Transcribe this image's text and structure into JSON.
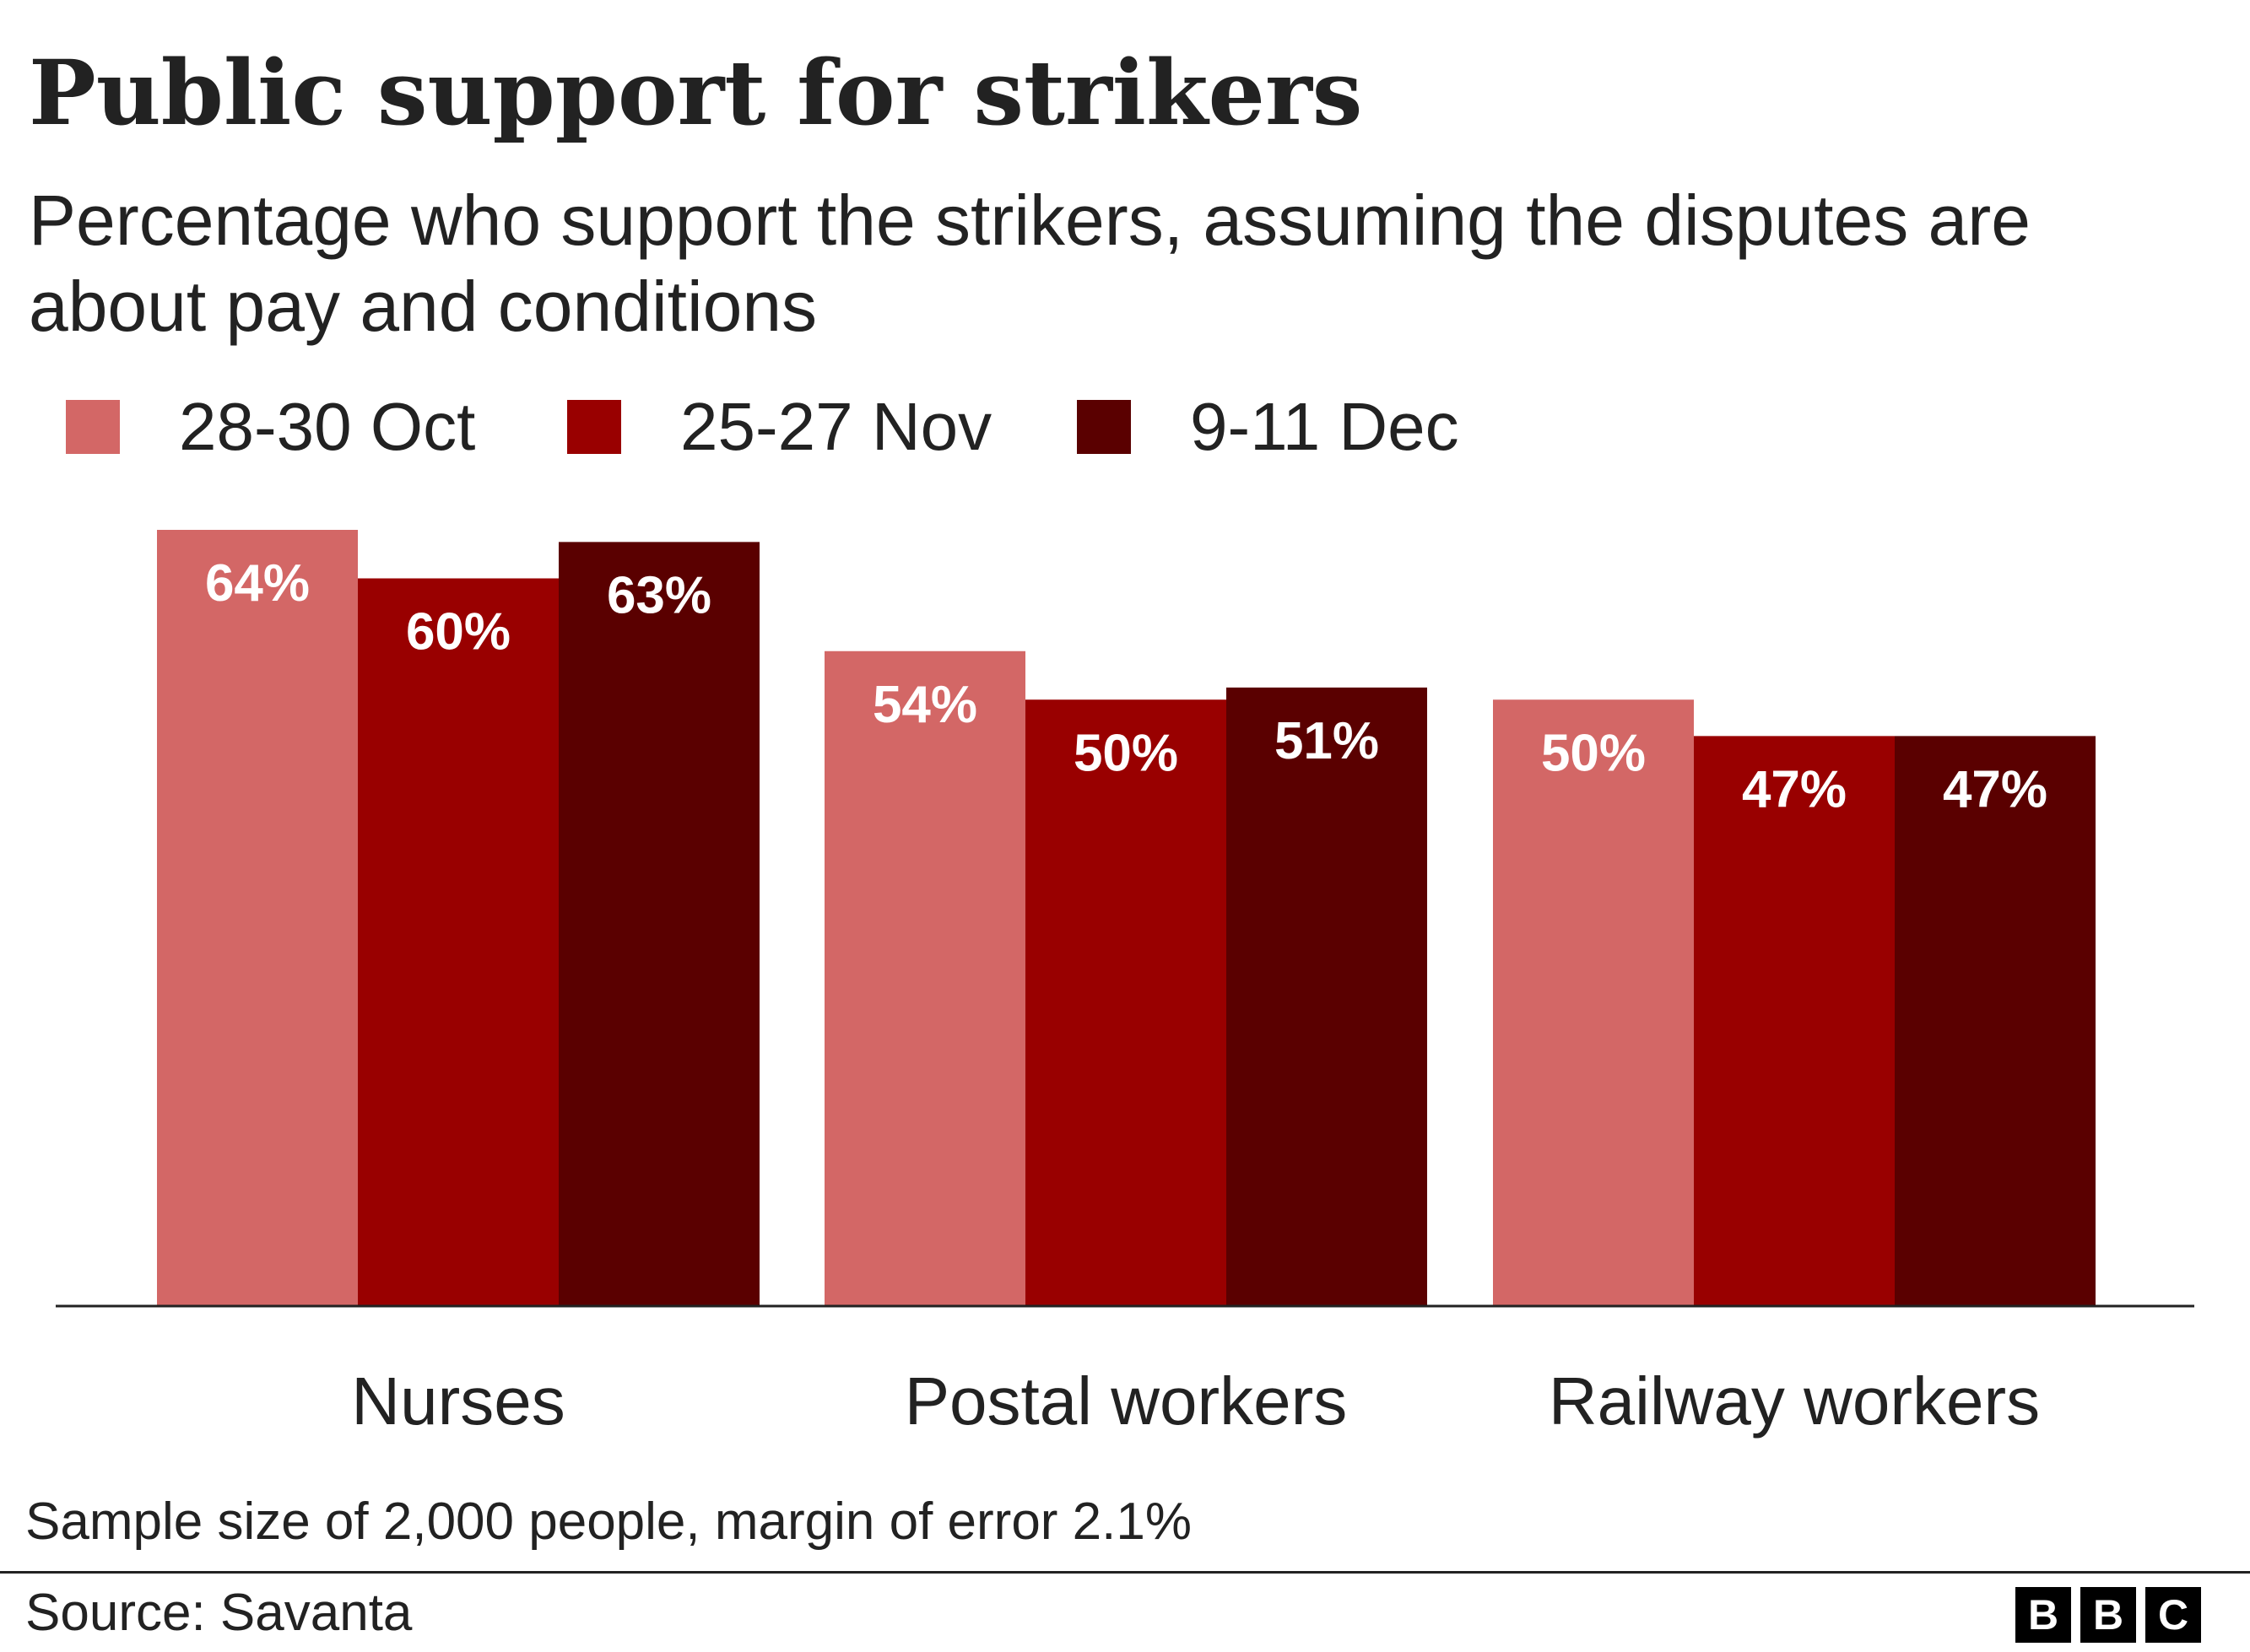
{
  "header": {
    "title": "Public support for strikers",
    "subtitle": "Percentage who support the strikers, assuming the disputes are about pay and conditions"
  },
  "legend": [
    {
      "label": "28-30 Oct",
      "color": "#d36766"
    },
    {
      "label": "25-27 Nov",
      "color": "#990000"
    },
    {
      "label": "9-11 Dec",
      "color": "#5a0000"
    }
  ],
  "chart_data": {
    "type": "bar",
    "title": "Public support for strikers",
    "subtitle": "Percentage who support the strikers, assuming the disputes are about pay and conditions",
    "categories": [
      "Nurses",
      "Postal workers",
      "Railway workers"
    ],
    "series": [
      {
        "name": "28-30 Oct",
        "values": [
          64,
          54,
          50
        ],
        "labels": [
          "64%",
          "54%",
          "50%"
        ],
        "color": "#d36766"
      },
      {
        "name": "25-27 Nov",
        "values": [
          60,
          50,
          47
        ],
        "labels": [
          "60%",
          "50%",
          "47%"
        ],
        "color": "#990000"
      },
      {
        "name": "9-11 Dec",
        "values": [
          63,
          51,
          47
        ],
        "labels": [
          "63%",
          "51%",
          "47%"
        ],
        "color": "#5a0000"
      }
    ],
    "xlabel": "",
    "ylabel": "",
    "ylim": [
      0,
      64
    ],
    "grid": false,
    "legend_position": "top-left"
  },
  "footer": {
    "note": "Sample size of 2,000 people, margin of error 2.1%",
    "source": "Source: Savanta",
    "logo_letters": [
      "B",
      "B",
      "C"
    ]
  }
}
